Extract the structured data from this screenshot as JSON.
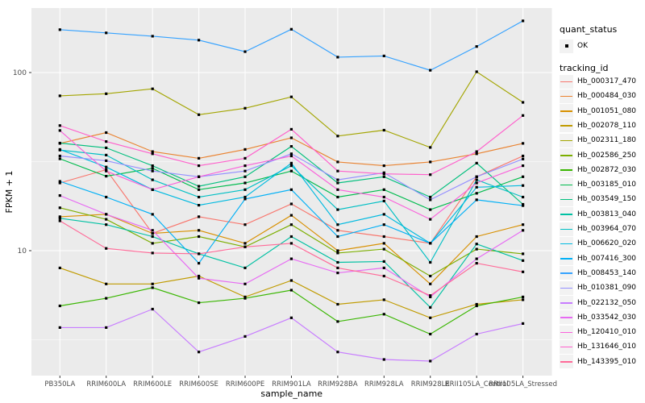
{
  "figure": {
    "legend": {
      "quant_status_title": "quant_status",
      "quant_status_items": [
        {
          "label": "OK",
          "marker": "black-square-point"
        }
      ],
      "tracking_id_title": "tracking_id"
    },
    "colors": {
      "panel_background": "#EBEBEB",
      "gridline": "#FFFFFF",
      "tick_label_text": "#4D4D4D",
      "axis_title_text": "#000000",
      "point_marker": "#000000",
      "legend_key_background": "#F2F2F2"
    }
  },
  "chart_data": {
    "type": "line",
    "title": "",
    "xlabel": "sample_name",
    "ylabel": "FPKM + 1",
    "y_scale": "log10",
    "y_ticks": [
      10,
      100
    ],
    "y_minor_gridlines": [
      3.162,
      31.62
    ],
    "ylim": [
      2.0,
      260
    ],
    "grid": true,
    "legend_position": "right",
    "point_marker": "black square (quant_status = OK) on every data point",
    "categories": [
      "PB350LA",
      "RRIM600LA",
      "RRIM600LE",
      "RRIM600SE",
      "RRIM600PE",
      "RRIM901LA",
      "RRIM928BA",
      "RRIM928LA",
      "RRIM928LE",
      "RRII105LA_Control",
      "RRII105LA_Stressed"
    ],
    "series": [
      {
        "name": "Hb_000317_470",
        "color": "#F8766D",
        "values": [
          24,
          28.5,
          12.5,
          15.5,
          14,
          18.3,
          13,
          12,
          11,
          26,
          34
        ]
      },
      {
        "name": "Hb_000484_030",
        "color": "#EA8331",
        "values": [
          40,
          46,
          36,
          33,
          37,
          43,
          31.5,
          30,
          31.5,
          35,
          40
        ]
      },
      {
        "name": "Hb_001051_080",
        "color": "#D89000",
        "values": [
          15.5,
          16,
          12.5,
          13,
          11,
          15.8,
          10,
          11,
          6.5,
          12,
          14
        ]
      },
      {
        "name": "Hb_002078_110",
        "color": "#C09B00",
        "values": [
          8,
          6.5,
          6.5,
          7.2,
          5.5,
          6.8,
          5,
          5.3,
          4.2,
          5,
          5.3
        ]
      },
      {
        "name": "Hb_002311_180",
        "color": "#A3A500",
        "values": [
          74,
          76,
          81,
          58,
          63,
          73,
          44,
          47.5,
          38,
          101,
          68
        ]
      },
      {
        "name": "Hb_002586_250",
        "color": "#7CAE00",
        "values": [
          17.4,
          15,
          11,
          12,
          10.5,
          14,
          9.7,
          10.2,
          7.2,
          10.2,
          9.6
        ]
      },
      {
        "name": "Hb_002872_030",
        "color": "#39B600",
        "values": [
          4.9,
          5.4,
          6.2,
          5.1,
          5.4,
          6,
          4,
          4.4,
          3.4,
          4.9,
          5.5
        ]
      },
      {
        "name": "Hb_003185_010",
        "color": "#00BB4E",
        "values": [
          32.8,
          26.2,
          29,
          22,
          24,
          28,
          20,
          22,
          17,
          21,
          26
        ]
      },
      {
        "name": "Hb_003549_150",
        "color": "#00BF7D",
        "values": [
          40.2,
          37.8,
          30,
          23,
          26,
          38.5,
          24,
          26,
          20,
          31,
          18.2
        ]
      },
      {
        "name": "Hb_003813_040",
        "color": "#00C1A3",
        "values": [
          15.2,
          14,
          12,
          9.6,
          8,
          12,
          8.6,
          8.7,
          4.8,
          10.9,
          8.8
        ]
      },
      {
        "name": "Hb_003964_070",
        "color": "#00BFC4",
        "values": [
          36.7,
          34.4,
          25,
          20,
          22,
          30,
          17,
          19,
          8.6,
          25,
          20
        ]
      },
      {
        "name": "Hb_006620_020",
        "color": "#00BAE0",
        "values": [
          37,
          29.5,
          22,
          18,
          20,
          31,
          14,
          16,
          11,
          22.7,
          23.2
        ]
      },
      {
        "name": "Hb_007416_300",
        "color": "#00B0F6",
        "values": [
          24.5,
          20,
          16,
          8.5,
          19.5,
          22,
          12,
          14,
          11,
          19.3,
          17.9
        ]
      },
      {
        "name": "Hb_008453_140",
        "color": "#35A2FF",
        "values": [
          174,
          167,
          160,
          152,
          131,
          175,
          122,
          124,
          103,
          140,
          195
        ]
      },
      {
        "name": "Hb_010381_090",
        "color": "#9590FF",
        "values": [
          34,
          32,
          28,
          26,
          28,
          35,
          25,
          27.4,
          19.3,
          26,
          32.7
        ]
      },
      {
        "name": "Hb_022132_050",
        "color": "#C77CFF",
        "values": [
          3.7,
          3.7,
          4.7,
          2.7,
          3.3,
          4.2,
          2.7,
          2.45,
          2.4,
          3.4,
          3.9
        ]
      },
      {
        "name": "Hb_033542_030",
        "color": "#E76BF3",
        "values": [
          20.4,
          16,
          13,
          7,
          6.5,
          9,
          7.5,
          8,
          5.5,
          9,
          13
        ]
      },
      {
        "name": "Hb_120410_010",
        "color": "#FA62DB",
        "values": [
          47.3,
          28,
          22,
          26,
          30,
          34,
          22,
          20,
          15,
          24,
          30
        ]
      },
      {
        "name": "Hb_131646_010",
        "color": "#FF61CC",
        "values": [
          50.4,
          41,
          35,
          30,
          33,
          48,
          28,
          27,
          26.7,
          36,
          57.4
        ]
      },
      {
        "name": "Hb_143395_010",
        "color": "#FF6A98",
        "values": [
          14.7,
          10.3,
          9.7,
          9.6,
          10.5,
          11,
          8,
          7.2,
          5.6,
          8.5,
          7.6
        ]
      }
    ]
  }
}
